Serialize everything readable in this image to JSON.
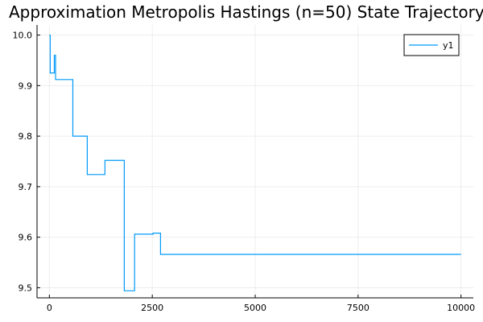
{
  "chart_data": {
    "type": "line",
    "title": "Approximation Metropolis Hastings (n=50) State Trajectory",
    "xlabel": "",
    "ylabel": "",
    "xlim": [
      -300,
      10300
    ],
    "ylim": [
      9.48,
      10.02
    ],
    "grid": true,
    "legend_placement": "top-right",
    "x_ticks": [
      0,
      2500,
      5000,
      7500,
      10000
    ],
    "x_tick_labels": [
      "0",
      "2500",
      "5000",
      "7500",
      "10000"
    ],
    "y_ticks": [
      9.5,
      9.6,
      9.7,
      9.8,
      9.9,
      10.0
    ],
    "y_tick_labels": [
      "9.5",
      "9.6",
      "9.7",
      "9.8",
      "9.9",
      "10.0"
    ],
    "series": [
      {
        "name": "y1",
        "color": "#009af9",
        "step": "post",
        "x": [
          0,
          20,
          120,
          150,
          570,
          920,
          1350,
          1820,
          2070,
          2520,
          2700,
          10000
        ],
        "y": [
          10.0,
          9.925,
          9.96,
          9.912,
          9.8,
          9.724,
          9.752,
          9.494,
          9.606,
          9.608,
          9.566,
          9.566
        ]
      }
    ]
  }
}
